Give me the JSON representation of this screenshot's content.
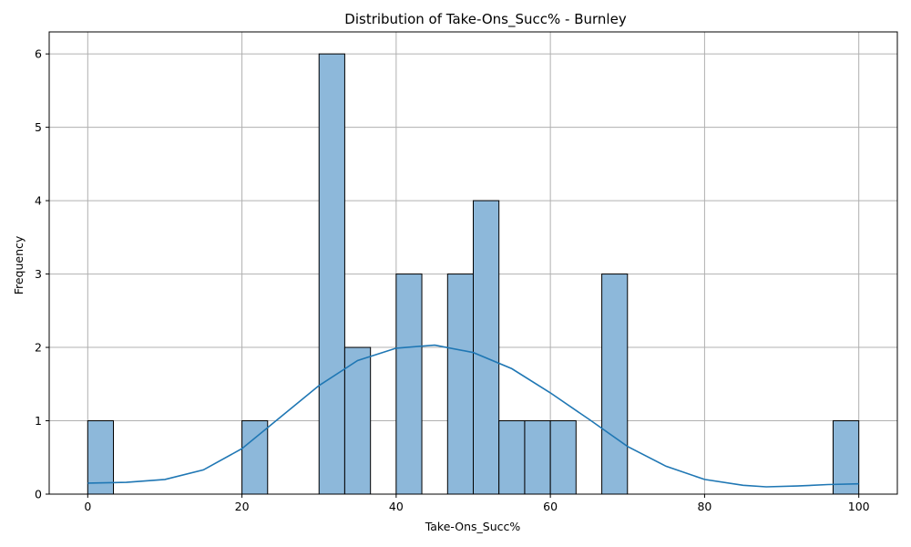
{
  "chart_data": {
    "type": "histogram",
    "title": "Distribution of Take-Ons_Succ% - Burnley",
    "xlabel": "Take-Ons_Succ%",
    "ylabel": "Frequency",
    "xlim": [
      -5,
      105
    ],
    "ylim": [
      0,
      6.3
    ],
    "xticks": [
      0,
      20,
      40,
      60,
      80,
      100
    ],
    "yticks": [
      0,
      1,
      2,
      3,
      4,
      5,
      6
    ],
    "grid": true,
    "bins": [
      {
        "start": 0.0,
        "end": 3.33,
        "count": 1
      },
      {
        "start": 20.0,
        "end": 23.33,
        "count": 1
      },
      {
        "start": 30.0,
        "end": 33.33,
        "count": 6
      },
      {
        "start": 33.33,
        "end": 36.67,
        "count": 2
      },
      {
        "start": 40.0,
        "end": 43.33,
        "count": 3
      },
      {
        "start": 46.67,
        "end": 50.0,
        "count": 3
      },
      {
        "start": 50.0,
        "end": 53.33,
        "count": 4
      },
      {
        "start": 53.33,
        "end": 56.67,
        "count": 1
      },
      {
        "start": 56.67,
        "end": 60.0,
        "count": 1
      },
      {
        "start": 60.0,
        "end": 63.33,
        "count": 1
      },
      {
        "start": 66.67,
        "end": 70.0,
        "count": 3
      },
      {
        "start": 96.67,
        "end": 100.0,
        "count": 1
      }
    ],
    "kde": {
      "x": [
        0,
        5,
        10,
        15,
        20,
        25,
        30,
        35,
        40,
        45,
        50,
        55,
        60,
        65,
        70,
        75,
        80,
        85,
        88,
        92,
        96,
        100
      ],
      "y": [
        0.15,
        0.16,
        0.2,
        0.33,
        0.62,
        1.05,
        1.48,
        1.82,
        1.99,
        2.03,
        1.93,
        1.71,
        1.38,
        1.02,
        0.65,
        0.38,
        0.2,
        0.12,
        0.1,
        0.11,
        0.13,
        0.14
      ]
    },
    "colors": {
      "bar_fill": "#8db8da",
      "bar_stroke": "#000000",
      "kde_line": "#1f77b4",
      "grid": "#b0b0b0"
    }
  }
}
